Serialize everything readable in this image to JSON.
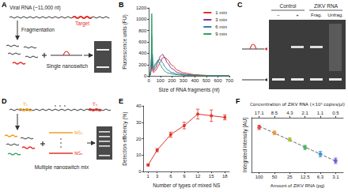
{
  "panel_labels": [
    "A",
    "B",
    "C",
    "D",
    "E",
    "F"
  ],
  "diagram_a": {
    "title": "Viral RNA (~11,000 nt)",
    "target": "Target",
    "step": "Fragmentation",
    "probe": "Single nanoswitch"
  },
  "gel_c": {
    "groups": [
      {
        "label": "Control",
        "lanes": [
          "−",
          "+"
        ]
      },
      {
        "label": "ZIKV RNA",
        "lanes": [
          "Frag.",
          "Unfrag."
        ]
      }
    ]
  },
  "diagram_d": {
    "targets": [
      "T₁",
      "Tₙ"
    ],
    "switches": [
      "NS₁",
      "NSₙ"
    ],
    "mix": "Multiple nanoswitch mix"
  },
  "chart_data": [
    {
      "type": "line",
      "x": [
        0,
        10,
        20,
        25,
        30,
        40,
        60,
        80,
        100,
        120,
        140,
        160,
        200,
        250,
        300,
        400,
        500,
        600,
        700
      ],
      "series": [
        {
          "name": "1 min",
          "color": "#e0332a",
          "values": [
            0,
            8,
            80,
            250,
            110,
            60,
            100,
            170,
            250,
            320,
            330,
            290,
            190,
            100,
            55,
            22,
            10,
            5,
            3
          ]
        },
        {
          "name": "3 min",
          "color": "#7a3b8f",
          "values": [
            0,
            10,
            120,
            400,
            180,
            90,
            150,
            250,
            350,
            380,
            310,
            230,
            130,
            60,
            30,
            12,
            6,
            3,
            2
          ]
        },
        {
          "name": "6 min",
          "color": "#2c7fb8",
          "values": [
            0,
            15,
            200,
            700,
            280,
            120,
            200,
            280,
            290,
            230,
            160,
            110,
            60,
            30,
            18,
            8,
            4,
            2,
            1
          ]
        },
        {
          "name": "9 min",
          "color": "#2ca25f",
          "values": [
            0,
            20,
            300,
            1100,
            400,
            150,
            230,
            260,
            200,
            130,
            80,
            55,
            35,
            20,
            12,
            5,
            3,
            2,
            1
          ]
        }
      ],
      "xlabel": "Size of RNA fragments (nt)",
      "ylabel": "Fluorescence units (FU)",
      "xlim": [
        0,
        700
      ],
      "xticks": [
        0,
        100,
        200,
        300,
        400,
        500,
        600,
        700
      ],
      "ylim": [
        0,
        1200
      ],
      "yticks": [
        0,
        200,
        400,
        600,
        800,
        1000,
        1200
      ],
      "legend": "top-right",
      "grid": false
    },
    {
      "type": "line",
      "x": [
        1,
        3,
        6,
        9,
        12,
        15,
        18
      ],
      "values": [
        4,
        13,
        22.5,
        28,
        35,
        34,
        33
      ],
      "errors": [
        0.6,
        1,
        1.5,
        2,
        3,
        3.5,
        1.5
      ],
      "color": "#e0332a",
      "marker": "circle",
      "xlabel": "Number of types of mixed NS",
      "ylabel": "Detection efficiency (%)",
      "xlim": [
        0,
        19
      ],
      "xticks": [
        1,
        3,
        6,
        9,
        12,
        15,
        18
      ],
      "ylim": [
        0,
        40
      ],
      "yticks": [
        0,
        10,
        20,
        30,
        40
      ],
      "grid": false
    },
    {
      "type": "scatter",
      "categories": [
        "100",
        "50",
        "25",
        "12.5",
        "6.3",
        "3.1"
      ],
      "values": [
        1480,
        1300,
        1080,
        820,
        600,
        380
      ],
      "errors": [
        70,
        60,
        60,
        70,
        90,
        90
      ],
      "colors": [
        "#e3342f",
        "#f28c28",
        "#a8b820",
        "#3aa655",
        "#2b8cc4",
        "#5a4fcf"
      ],
      "fit": {
        "values": [
          1520,
          1290,
          1060,
          830,
          600,
          370
        ],
        "color": "#666666",
        "line_style": "dashed"
      },
      "xlabel": "Amount of ZIKV RNA (pg)",
      "x2label": "Concentration of ZIKV RNA (×10⁵ copies/μl)",
      "x2categories": [
        "17.1",
        "8.5",
        "4.3",
        "2.1",
        "1.1",
        "0.5"
      ],
      "ylabel": "Integrated intensity [AU]",
      "ylim": [
        0,
        1800
      ],
      "tick_labels": "x",
      "grid": false
    }
  ]
}
